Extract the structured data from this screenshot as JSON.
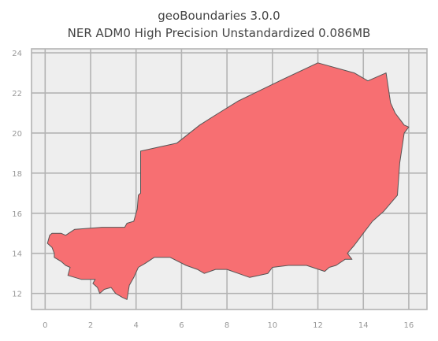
{
  "title": "geoBoundaries 3.0.0",
  "subtitle": "NER ADM0 High Precision Unstandardized 0.086MB",
  "map": {
    "x_ticks": [
      "0",
      "2",
      "4",
      "6",
      "8",
      "10",
      "12",
      "14",
      "16"
    ],
    "y_ticks": [
      "12",
      "14",
      "16",
      "18",
      "20",
      "22",
      "24"
    ],
    "xlim": [
      -0.6,
      16.8
    ],
    "ylim": [
      11.2,
      24.2
    ],
    "background_color": "#eeeeee",
    "grid_color": "#b3b3b3",
    "fill_color": "#f76f72",
    "edge_color": "#555555",
    "boundary": [
      [
        0.2,
        14.9
      ],
      [
        0.3,
        15.0
      ],
      [
        0.7,
        15.0
      ],
      [
        0.9,
        14.9
      ],
      [
        1.3,
        15.2
      ],
      [
        2.5,
        15.3
      ],
      [
        3.5,
        15.3
      ],
      [
        3.6,
        15.5
      ],
      [
        3.9,
        15.6
      ],
      [
        4.05,
        16.2
      ],
      [
        4.1,
        16.9
      ],
      [
        4.2,
        17.0
      ],
      [
        4.2,
        19.1
      ],
      [
        5.0,
        19.3
      ],
      [
        5.8,
        19.5
      ],
      [
        6.8,
        20.4
      ],
      [
        7.5,
        20.9
      ],
      [
        8.5,
        21.6
      ],
      [
        10.5,
        22.7
      ],
      [
        12.0,
        23.5
      ],
      [
        13.6,
        23.0
      ],
      [
        14.2,
        22.6
      ],
      [
        15.0,
        23.0
      ],
      [
        15.2,
        21.5
      ],
      [
        15.4,
        21.0
      ],
      [
        15.8,
        20.4
      ],
      [
        16.0,
        20.3
      ],
      [
        15.8,
        20.0
      ],
      [
        15.6,
        18.5
      ],
      [
        15.5,
        16.9
      ],
      [
        14.9,
        16.1
      ],
      [
        14.4,
        15.6
      ],
      [
        14.0,
        15.0
      ],
      [
        13.8,
        14.7
      ],
      [
        13.6,
        14.4
      ],
      [
        13.3,
        14.0
      ],
      [
        13.5,
        13.7
      ],
      [
        13.2,
        13.7
      ],
      [
        12.8,
        13.4
      ],
      [
        12.5,
        13.3
      ],
      [
        12.3,
        13.1
      ],
      [
        11.5,
        13.4
      ],
      [
        10.7,
        13.4
      ],
      [
        10.0,
        13.3
      ],
      [
        9.8,
        13.0
      ],
      [
        9.0,
        12.8
      ],
      [
        8.5,
        13.0
      ],
      [
        8.0,
        13.2
      ],
      [
        7.5,
        13.2
      ],
      [
        7.0,
        13.0
      ],
      [
        6.7,
        13.2
      ],
      [
        6.2,
        13.4
      ],
      [
        5.5,
        13.8
      ],
      [
        4.8,
        13.8
      ],
      [
        4.4,
        13.5
      ],
      [
        4.1,
        13.3
      ],
      [
        3.9,
        12.8
      ],
      [
        3.7,
        12.4
      ],
      [
        3.6,
        11.7
      ],
      [
        3.4,
        11.8
      ],
      [
        3.1,
        12.0
      ],
      [
        2.9,
        12.3
      ],
      [
        2.6,
        12.2
      ],
      [
        2.4,
        12.0
      ],
      [
        2.3,
        12.3
      ],
      [
        2.1,
        12.5
      ],
      [
        2.2,
        12.7
      ],
      [
        1.6,
        12.7
      ],
      [
        1.0,
        12.9
      ],
      [
        1.1,
        13.3
      ],
      [
        0.9,
        13.4
      ],
      [
        0.7,
        13.6
      ],
      [
        0.4,
        13.8
      ],
      [
        0.4,
        14.0
      ],
      [
        0.3,
        14.3
      ],
      [
        0.1,
        14.5
      ],
      [
        0.2,
        14.9
      ]
    ]
  }
}
